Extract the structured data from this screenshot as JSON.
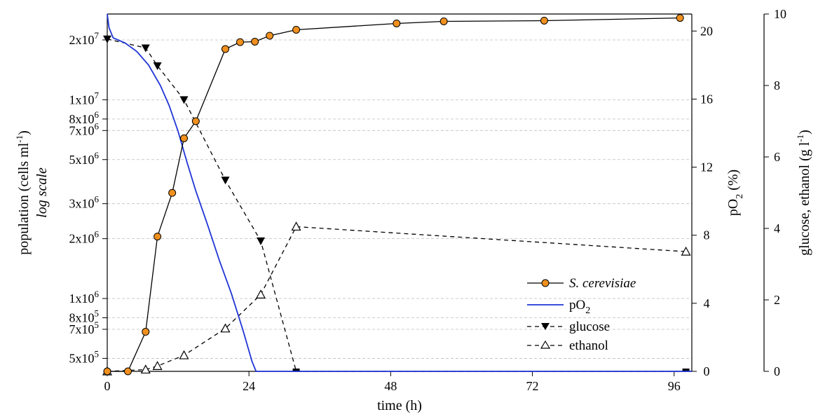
{
  "chart_data": {
    "type": "line",
    "xlabel": "time (h)",
    "xlim": [
      0,
      99
    ],
    "xticks": [
      0,
      24,
      48,
      72,
      96
    ],
    "y_left": {
      "label": "population (cells ml",
      "label_sup": "-1",
      "label_close": ")",
      "sublabel": "log scale",
      "scale": "log",
      "lim": [
        430000,
        27000000
      ],
      "ticks": [
        {
          "value": 500000,
          "mantissa": "5x10",
          "exp": "5"
        },
        {
          "value": 700000,
          "mantissa": "7x10",
          "exp": "5"
        },
        {
          "value": 800000,
          "mantissa": "8x10",
          "exp": "5"
        },
        {
          "value": 1000000,
          "mantissa": "1x10",
          "exp": "6"
        },
        {
          "value": 2000000,
          "mantissa": "2x10",
          "exp": "6"
        },
        {
          "value": 3000000,
          "mantissa": "3x10",
          "exp": "6"
        },
        {
          "value": 5000000,
          "mantissa": "5x10",
          "exp": "6"
        },
        {
          "value": 7000000,
          "mantissa": "7x10",
          "exp": "6"
        },
        {
          "value": 8000000,
          "mantissa": "8x10",
          "exp": "6"
        },
        {
          "value": 10000000,
          "mantissa": "1x10",
          "exp": "7"
        },
        {
          "value": 20000000,
          "mantissa": "2x10",
          "exp": "7"
        }
      ]
    },
    "y_middle": {
      "label": "pO",
      "label_sub": "2",
      "label_rest": " (%)",
      "lim": [
        0,
        21
      ],
      "ticks": [
        "0",
        "4",
        "8",
        "12",
        "16",
        "20"
      ]
    },
    "y_right": {
      "label": "glucose, ethanol (g l",
      "label_sup": "-1",
      "label_close": ")",
      "lim": [
        0,
        10
      ],
      "ticks": [
        "0",
        "2",
        "4",
        "6",
        "8",
        "10"
      ]
    },
    "grid": "horizontal dashed at left-axis ticks",
    "legend_position": "lower-right",
    "series": [
      {
        "name": "S. cerevisiae",
        "axis": "y_left",
        "color": "#000000",
        "marker_color": "#f0901e",
        "x": [
          0,
          3.5,
          6.5,
          8.5,
          11,
          13,
          15,
          20,
          22.5,
          25,
          27.5,
          32,
          49,
          57,
          74,
          97
        ],
        "y": [
          430000,
          430000,
          680000,
          2050000,
          3400000,
          6400000,
          7800000,
          18000000,
          19500000,
          19600000,
          21000000,
          22500000,
          24200000,
          24800000,
          25000000,
          25800000
        ]
      },
      {
        "name": "pO2",
        "axis": "y_middle",
        "color": "#1f35d6",
        "x": [
          0,
          0.3,
          1,
          3,
          5,
          7,
          9,
          10.5,
          12,
          13.5,
          15,
          17,
          19,
          21,
          23,
          24.5,
          25.2,
          30,
          99
        ],
        "y": [
          21,
          20.2,
          19.6,
          19.3,
          18.8,
          18,
          16.8,
          15.6,
          14.1,
          12.3,
          10.6,
          8.6,
          6.5,
          4.6,
          2.4,
          0.6,
          0,
          0,
          0
        ]
      },
      {
        "name": "glucose",
        "axis": "y_right",
        "color": "#000000",
        "x": [
          0,
          6.5,
          8.5,
          13,
          20,
          26,
          32,
          98
        ],
        "y": [
          9.3,
          9.05,
          8.55,
          7.6,
          5.35,
          3.65,
          0,
          0
        ]
      },
      {
        "name": "ethanol",
        "axis": "y_right",
        "color": "#000000",
        "x": [
          0,
          6.5,
          8.5,
          13,
          20,
          26,
          32,
          98
        ],
        "y": [
          0,
          0.05,
          0.15,
          0.45,
          1.2,
          2.15,
          4.05,
          3.35
        ]
      }
    ]
  }
}
